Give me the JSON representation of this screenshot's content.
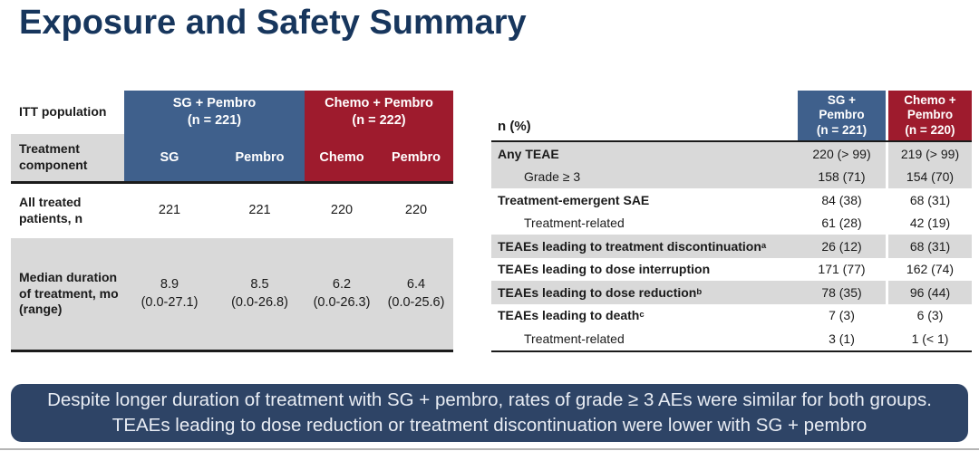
{
  "slide": {
    "title": "Exposure and Safety Summary"
  },
  "colors": {
    "title_navy": "#17365d",
    "header_blue": "#3f608c",
    "header_red": "#9e1b2d",
    "row_gray": "#d9d9d9",
    "banner_navy": "#2e4466",
    "banner_text": "#e9edf4"
  },
  "left_table": {
    "corner_label": "ITT population",
    "groups": [
      {
        "header": "SG + Pembro\n(n = 221)"
      },
      {
        "header": "Chemo + Pembro\n(n = 222)"
      }
    ],
    "component_label": "Treatment component",
    "components": [
      "SG",
      "Pembro",
      "Chemo",
      "Pembro"
    ],
    "rows": [
      {
        "label": "All treated patients, n",
        "values": [
          "221",
          "221",
          "220",
          "220"
        ]
      },
      {
        "label": "Median duration of treatment, mo (range)",
        "values": [
          "8.9\n(0.0-27.1)",
          "8.5\n(0.0-26.8)",
          "6.2\n(0.0-26.3)",
          "6.4\n(0.0-25.6)"
        ]
      }
    ]
  },
  "right_table": {
    "corner_label": "n (%)",
    "groups": [
      {
        "header": "SG +\nPembro\n(n = 221)"
      },
      {
        "header": "Chemo +\nPembro\n(n = 220)"
      }
    ],
    "rows": [
      {
        "label": "Any TEAE",
        "sup": "",
        "values": [
          "220 (> 99)",
          "219 (> 99)"
        ]
      },
      {
        "label": "Grade ≥ 3",
        "sup": "",
        "values": [
          "158 (71)",
          "154 (70)"
        ]
      },
      {
        "label": "Treatment-emergent SAE",
        "sup": "",
        "values": [
          "84 (38)",
          "68 (31)"
        ]
      },
      {
        "label": "Treatment-related",
        "sup": "",
        "values": [
          "61 (28)",
          "42 (19)"
        ]
      },
      {
        "label": "TEAEs leading to treatment discontinuation",
        "sup": "a",
        "values": [
          "26 (12)",
          "68 (31)"
        ]
      },
      {
        "label": "TEAEs leading to dose interruption",
        "sup": "",
        "values": [
          "171 (77)",
          "162 (74)"
        ]
      },
      {
        "label": "TEAEs leading to dose reduction",
        "sup": "b",
        "values": [
          "78 (35)",
          "96 (44)"
        ]
      },
      {
        "label": "TEAEs leading to death",
        "sup": "c",
        "values": [
          "7 (3)",
          "6 (3)"
        ]
      },
      {
        "label": "Treatment-related",
        "sup": "",
        "values": [
          "3 (1)",
          "1 (< 1)"
        ]
      }
    ]
  },
  "banner": {
    "text": "Despite longer duration of treatment with SG + pembro, rates of grade ≥ 3 AEs were similar for both groups. TEAEs leading to dose reduction or treatment discontinuation were lower with SG + pembro"
  }
}
